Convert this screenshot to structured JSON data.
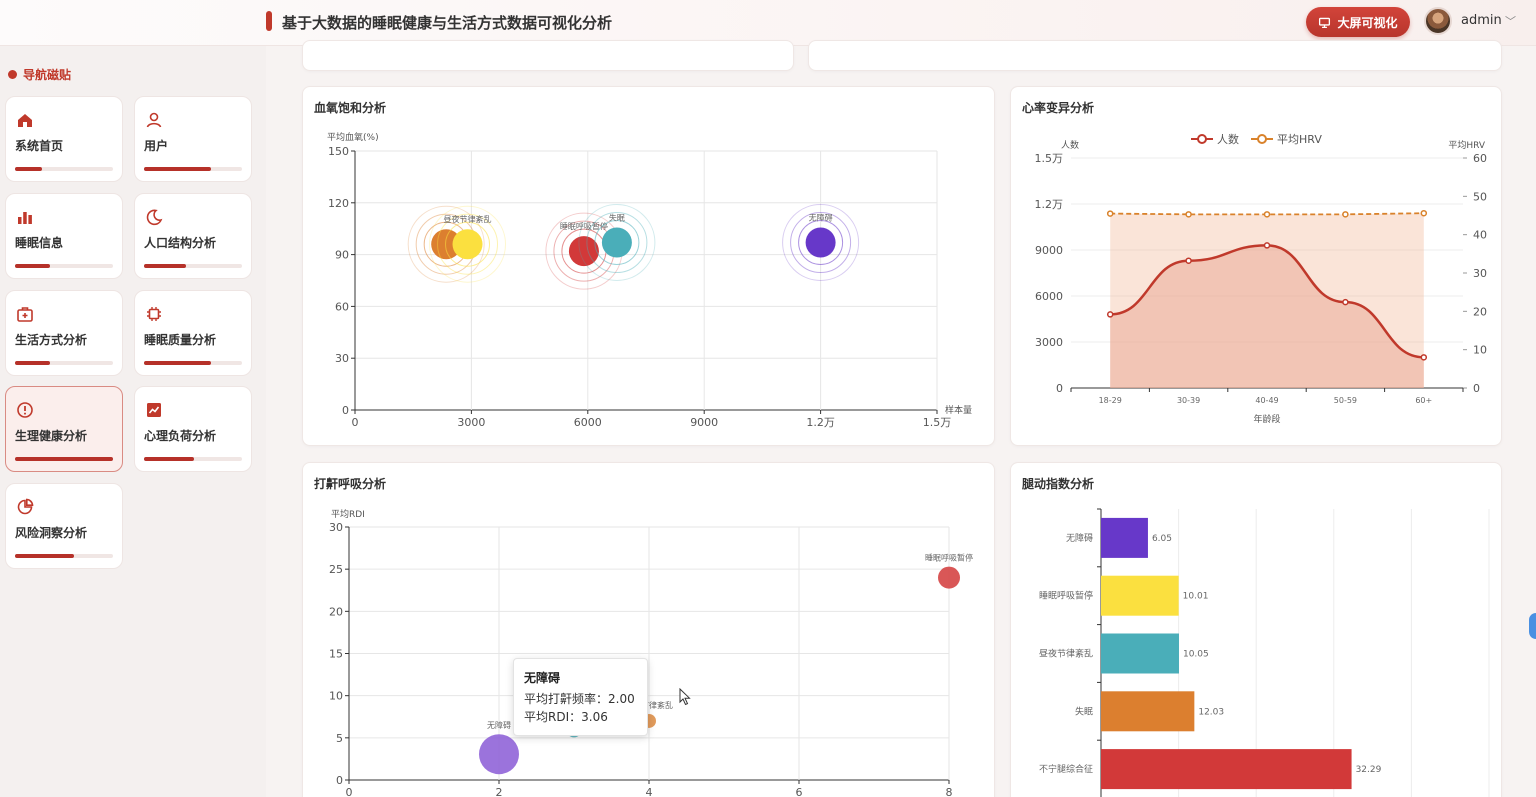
{
  "header": {
    "title": "基于大数据的睡眠健康与生活方式数据可视化分析",
    "bigscreen_label": "大屏可视化",
    "username": "admin",
    "caret": "﹀"
  },
  "sidebar": {
    "heading": "导航磁贴",
    "tiles": [
      {
        "label": "系统首页",
        "icon": "home-icon",
        "progress": 0.28
      },
      {
        "label": "用户",
        "icon": "user-icon",
        "progress": 0.68
      },
      {
        "label": "睡眠信息",
        "icon": "bar-chart-icon",
        "progress": 0.36
      },
      {
        "label": "人口结构分析",
        "icon": "moon-icon",
        "progress": 0.43
      },
      {
        "label": "生活方式分析",
        "icon": "medical-case-icon",
        "progress": 0.36
      },
      {
        "label": "睡眠质量分析",
        "icon": "chip-icon",
        "progress": 0.68
      },
      {
        "label": "生理健康分析",
        "icon": "alert-icon",
        "progress": 1.0,
        "active": true
      },
      {
        "label": "心理负荷分析",
        "icon": "trend-chart-icon",
        "progress": 0.51
      },
      {
        "label": "风险洞察分析",
        "icon": "pie-chart-icon",
        "progress": 0.6
      }
    ]
  },
  "cards": {
    "spo2_title": "血氧饱和分析",
    "hrv_title": "心率变异分析",
    "snore_title": "打鼾呼吸分析",
    "leg_title": "腿动指数分析"
  },
  "tooltip": {
    "title": "无障碍",
    "row1": "平均打鼾频率：2.00",
    "row2": "平均RDI：3.06"
  },
  "chart_data": [
    {
      "id": "spo2",
      "type": "scatter",
      "title": "血氧饱和分析",
      "xlabel": "样本量",
      "ylabel": "平均血氧(%)",
      "xlim": [
        0,
        15000
      ],
      "ylim": [
        0,
        150
      ],
      "xticks": [
        "0",
        "3000",
        "6000",
        "9000",
        "1.2万",
        "1.5万"
      ],
      "yticks": [
        "0",
        "30",
        "60",
        "90",
        "120",
        "150"
      ],
      "points": [
        {
          "name": "昼夜节律紊乱",
          "x": 2350,
          "y": 96,
          "color": "#dc7f2f",
          "show_label": false
        },
        {
          "name": "昼夜节律紊乱",
          "x": 2900,
          "y": 96,
          "color": "#fbe03f",
          "show_label": true
        },
        {
          "name": "睡眠呼吸暂停",
          "x": 5900,
          "y": 92,
          "color": "#d23939",
          "show_label": true
        },
        {
          "name": "失眠",
          "x": 6750,
          "y": 97,
          "color": "#4aaeb9",
          "show_label": true
        },
        {
          "name": "无障碍",
          "x": 12000,
          "y": 97,
          "color": "#6738c9",
          "show_label": true
        }
      ]
    },
    {
      "id": "hrv",
      "type": "line",
      "title": "心率变异分析",
      "xlabel": "年龄段",
      "categories": [
        "18-29",
        "30-39",
        "40-49",
        "50-59",
        "60+"
      ],
      "y_left_label": "人数",
      "y_left_ticks": [
        "0",
        "3000",
        "6000",
        "9000",
        "1.2万",
        "1.5万"
      ],
      "y_left_lim": [
        0,
        15000
      ],
      "y_right_label": "平均HRV",
      "y_right_ticks": [
        "0",
        "10",
        "20",
        "30",
        "40",
        "50",
        "60"
      ],
      "y_right_lim": [
        0,
        60
      ],
      "series": [
        {
          "name": "人数",
          "axis": "left",
          "color": "#c0392b",
          "values": [
            4800,
            8300,
            9300,
            5600,
            2000
          ]
        },
        {
          "name": "平均HRV",
          "axis": "right",
          "color": "#d9822b",
          "values": [
            45.5,
            45.3,
            45.3,
            45.3,
            45.6
          ]
        }
      ]
    },
    {
      "id": "snore",
      "type": "scatter",
      "title": "打鼾呼吸分析",
      "ylabel": "平均RDI",
      "xlim": [
        0,
        8
      ],
      "ylim": [
        0,
        30
      ],
      "xticks": [
        "0",
        "2",
        "4",
        "6",
        "8"
      ],
      "yticks": [
        "0",
        "5",
        "10",
        "15",
        "20",
        "25",
        "30"
      ],
      "points": [
        {
          "name": "无障碍",
          "x": 2.0,
          "y": 3.06,
          "color": "#8a5bd6",
          "size": 20
        },
        {
          "name": "失眠",
          "x": 3.0,
          "y": 6.0,
          "color": "#4aaeb9",
          "size": 8
        },
        {
          "name": "昼夜节律紊乱",
          "x": 4.0,
          "y": 7.0,
          "color": "#dc8a3f",
          "size": 7
        },
        {
          "name": "睡眠呼吸暂停",
          "x": 8.0,
          "y": 24.0,
          "color": "#d23939",
          "size": 11
        }
      ]
    },
    {
      "id": "leg",
      "type": "bar",
      "title": "腿动指数分析",
      "xlim": [
        0,
        50
      ],
      "categories": [
        "无障碍",
        "睡眠呼吸暂停",
        "昼夜节律紊乱",
        "失眠",
        "不宁腿综合征"
      ],
      "values": [
        6.05,
        10.01,
        10.05,
        12.03,
        32.29
      ],
      "colors": [
        "#6738c9",
        "#fbe03f",
        "#4aaeb9",
        "#dc7f2f",
        "#d23939"
      ]
    }
  ]
}
